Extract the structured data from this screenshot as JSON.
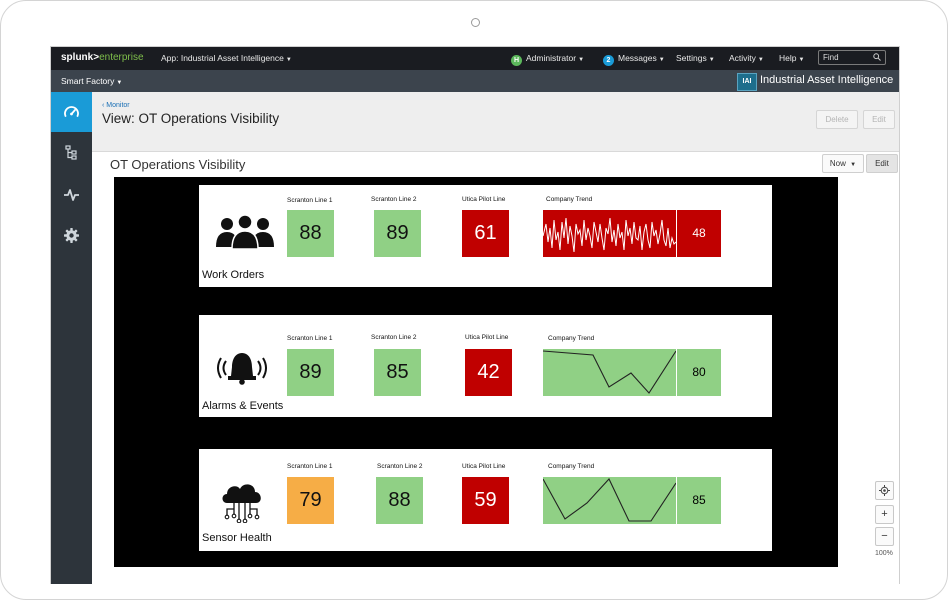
{
  "topbar": {
    "logo_main": "splunk>",
    "logo_sub": "enterprise",
    "app_label": "App: Industrial Asset Intelligence",
    "user_initial": "H",
    "user_label": "Administrator",
    "messages_count": "2",
    "messages_label": "Messages",
    "settings_label": "Settings",
    "activity_label": "Activity",
    "help_label": "Help",
    "find_placeholder": "Find"
  },
  "appbar": {
    "context_label": "Smart Factory",
    "app_badge": "IAI",
    "app_title": "Industrial Asset Intelligence"
  },
  "header": {
    "breadcrumb": "Monitor",
    "view_title": "View: OT Operations Visibility",
    "delete_label": "Delete",
    "edit_label": "Edit"
  },
  "dashboard": {
    "title": "OT Operations Visibility",
    "time_label": "Now",
    "edit_label": "Edit",
    "zoom_label": "100%"
  },
  "panels": [
    {
      "name": "Work Orders",
      "icon": "people-icon",
      "line1_label": "Scranton Line 1",
      "line1_value": "88",
      "line1_status": "green",
      "line2_label": "Scranton Line 2",
      "line2_value": "89",
      "line2_status": "green",
      "line3_label": "Utica Pilot Line",
      "line3_value": "61",
      "line3_status": "red",
      "trend_label": "Company Trend",
      "trend_value": "48",
      "trend_status": "red"
    },
    {
      "name": "Alarms & Events",
      "icon": "bell-icon",
      "line1_label": "Scranton Line 1",
      "line1_value": "89",
      "line1_status": "green",
      "line2_label": "Scranton Line 2",
      "line2_value": "85",
      "line2_status": "green",
      "line3_label": "Utica Pilot Line",
      "line3_value": "42",
      "line3_status": "red",
      "trend_label": "Company Trend",
      "trend_value": "80",
      "trend_status": "green"
    },
    {
      "name": "Sensor Health",
      "icon": "cloud-circuit-icon",
      "line1_label": "Scranton Line 1",
      "line1_value": "79",
      "line1_status": "orange",
      "line2_label": "Scranton Line 2",
      "line2_value": "88",
      "line2_status": "green",
      "line3_label": "Utica Pilot Line",
      "line3_value": "59",
      "line3_status": "red",
      "trend_label": "Company Trend",
      "trend_value": "85",
      "trend_status": "green"
    }
  ],
  "colors": {
    "green": "#90d085",
    "red": "#c00000",
    "orange": "#f6ad46",
    "accent": "#1a9bd7"
  }
}
